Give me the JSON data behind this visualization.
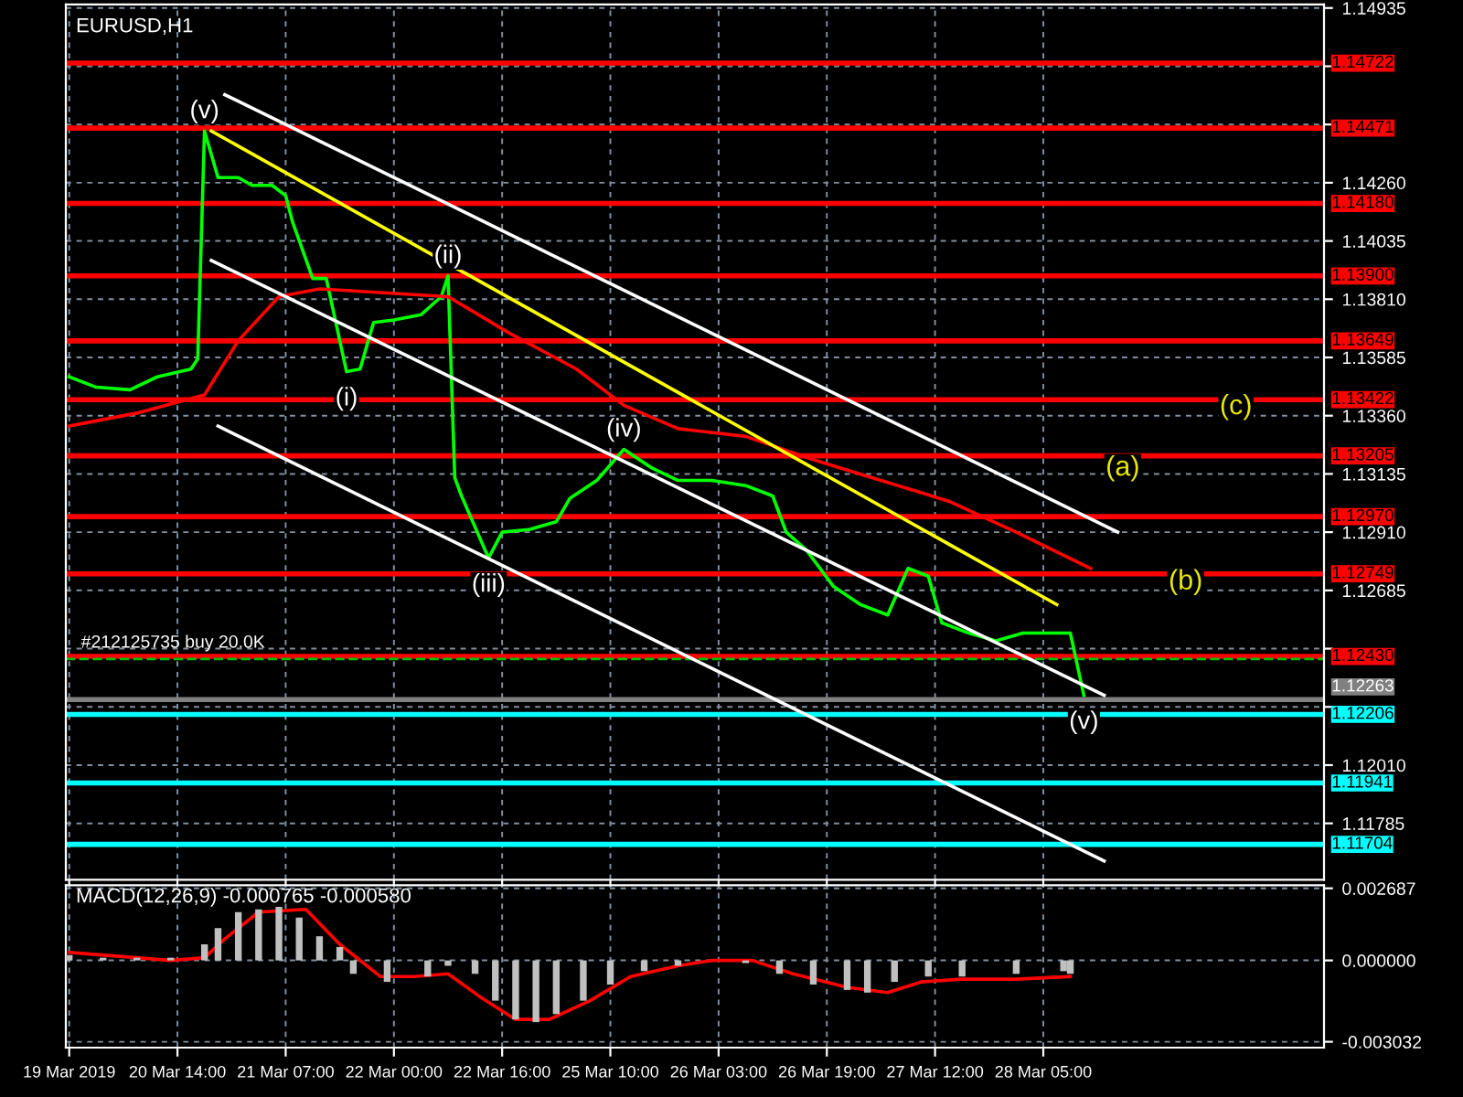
{
  "chart_data": [
    {
      "type": "line",
      "title": "EURUSD,H1",
      "ylim": [
        1.11567,
        1.14949
      ],
      "categories": [
        null,
        null,
        null,
        null,
        null,
        null,
        null,
        null,
        null,
        null,
        null,
        null,
        null,
        null,
        null,
        null,
        null,
        null,
        null,
        null,
        null,
        null,
        null,
        null,
        null,
        null,
        null,
        null,
        null,
        null,
        null,
        null,
        null,
        null,
        null,
        null,
        null,
        null,
        null,
        null,
        null,
        null,
        null,
        null,
        null,
        null,
        null,
        null,
        null,
        null,
        null,
        null,
        null,
        null,
        null,
        null,
        null,
        null,
        null,
        null,
        null,
        null,
        null,
        null,
        null,
        null,
        null,
        null,
        null,
        null,
        null,
        null,
        null,
        null,
        null,
        null,
        null,
        null,
        null,
        null,
        null,
        null,
        null,
        null,
        null,
        null,
        null,
        null,
        null,
        null,
        null,
        null,
        null,
        null,
        null,
        null,
        null,
        null,
        null,
        null,
        null,
        null,
        null,
        null,
        null,
        null,
        null,
        null,
        null,
        null,
        null,
        null,
        null,
        null,
        null,
        null,
        null,
        null,
        null,
        null,
        null,
        null,
        null,
        null,
        null,
        null,
        null,
        null,
        null,
        null,
        null,
        null,
        null,
        null,
        null,
        null,
        null,
        null,
        null,
        null,
        null,
        null,
        null,
        null,
        null,
        null,
        null,
        null,
        null,
        null,
        null,
        null,
        null,
        null,
        null,
        null,
        null,
        null,
        null,
        null,
        null,
        null,
        null,
        null,
        null,
        null,
        null,
        null,
        null,
        null,
        null,
        null,
        null,
        null,
        null,
        null,
        null,
        null,
        null,
        null,
        null,
        null,
        null,
        null,
        null,
        null
      ],
      "yticks": [
        1.14935,
        {
          "value": 1.1471,
          "label": null
        },
        {
          "value": 1.14485,
          "label": null
        },
        {
          "value": 1.1426,
          "label": "1.14260"
        },
        1.14035,
        {
          "value": 1.1381,
          "label": "1.13810"
        },
        1.13585,
        {
          "value": 1.1336,
          "label": "1.13360"
        },
        1.13135,
        {
          "value": 1.1291,
          "label": "1.12910"
        },
        1.12685,
        {
          "value": 1.1246,
          "label": null
        },
        {
          "value": 1.12235,
          "label": null
        },
        {
          "value": 1.1201,
          "label": "1.12010"
        },
        1.11785
      ],
      "tick_labels": "y",
      "grid": true,
      "legend": false,
      "marker": "none",
      "series": [
        {
          "color": "#00ff00",
          "line_style": "solid",
          "values": [
            1.1351,
            null,
            null,
            null,
            1.1347,
            null,
            null,
            null,
            null,
            1.1346,
            null,
            null,
            null,
            1.1351,
            null,
            null,
            null,
            null,
            1.1354,
            1.1358,
            1.1446,
            null,
            1.1428,
            null,
            null,
            1.1428,
            null,
            1.1425,
            null,
            null,
            1.1425,
            null,
            1.1421,
            1.1411,
            null,
            null,
            1.1389,
            null,
            1.1389,
            null,
            1.1365,
            1.1353,
            null,
            1.1354,
            null,
            1.1372,
            null,
            null,
            1.1373,
            null,
            null,
            null,
            1.1375,
            null,
            null,
            1.1382,
            1.139,
            1.1312,
            1.1305,
            null,
            null,
            null,
            1.1281,
            null,
            1.1291,
            null,
            null,
            null,
            1.1292,
            null,
            null,
            null,
            1.1295,
            null,
            1.1304,
            null,
            null,
            null,
            1.1311,
            null,
            null,
            null,
            1.1323,
            null,
            null,
            null,
            1.1316,
            null,
            null,
            null,
            1.1311,
            null,
            null,
            null,
            null,
            1.1311,
            null,
            null,
            null,
            null,
            1.1309,
            null,
            null,
            null,
            1.1305,
            null,
            1.1291,
            null,
            null,
            1.1284,
            null,
            null,
            null,
            1.127,
            null,
            null,
            null,
            1.1263,
            null,
            null,
            null,
            1.1259,
            null,
            null,
            1.1277,
            null,
            null,
            1.1274,
            null,
            1.1256,
            null,
            null,
            null,
            1.1252,
            null,
            null,
            null,
            1.1249,
            null,
            null,
            null,
            1.1252,
            null,
            null,
            1.1252,
            null,
            null,
            null,
            1.1252,
            null,
            1.1228,
            null,
            null,
            null,
            null,
            null,
            null,
            null,
            null,
            null,
            null,
            null,
            null,
            null,
            null,
            null,
            null,
            null,
            null,
            null,
            null,
            null,
            null,
            null,
            null,
            null,
            null,
            null,
            null,
            null,
            null,
            null,
            null,
            null,
            null,
            null
          ]
        },
        {
          "color": "#ff0000",
          "line_style": "solid",
          "values": [
            1.1332,
            null,
            null,
            null,
            null,
            null,
            null,
            null,
            null,
            null,
            1.1337,
            null,
            null,
            null,
            null,
            null,
            null,
            null,
            null,
            null,
            1.1344,
            null,
            null,
            null,
            null,
            1.1365,
            null,
            null,
            null,
            null,
            null,
            1.1382,
            null,
            null,
            null,
            null,
            null,
            1.1385,
            null,
            null,
            null,
            null,
            null,
            null,
            null,
            null,
            null,
            null,
            null,
            null,
            null,
            null,
            null,
            null,
            null,
            null,
            1.1382,
            null,
            null,
            null,
            null,
            null,
            null,
            null,
            null,
            1.1368,
            null,
            null,
            null,
            null,
            null,
            null,
            null,
            null,
            null,
            1.1354,
            null,
            null,
            null,
            null,
            null,
            null,
            1.134,
            null,
            null,
            null,
            null,
            null,
            null,
            null,
            1.1331,
            null,
            null,
            null,
            null,
            null,
            null,
            null,
            null,
            null,
            1.1328,
            null,
            null,
            null,
            null,
            null,
            null,
            null,
            null,
            null,
            1.1319,
            null,
            null,
            null,
            null,
            null,
            null,
            null,
            null,
            null,
            1.1311,
            null,
            null,
            null,
            null,
            null,
            null,
            null,
            null,
            null,
            1.1303,
            null,
            null,
            null,
            null,
            null,
            null,
            null,
            null,
            null,
            1.1291,
            null,
            null,
            null,
            null,
            null,
            null,
            null,
            null,
            null,
            null,
            1.1277,
            null,
            null,
            null,
            null,
            null,
            null,
            null,
            null,
            null,
            null,
            null,
            null,
            null,
            null,
            null,
            null,
            null,
            null,
            null,
            null,
            null,
            null,
            null,
            null,
            null,
            null,
            null,
            null,
            null,
            null,
            null,
            null,
            null,
            null
          ]
        },
        {
          "color": "#ffffff",
          "line_style": "solid",
          "values": [
            null,
            null,
            null,
            null,
            null,
            null,
            null,
            null,
            null,
            null,
            null,
            null,
            null,
            null,
            null,
            null,
            null,
            null,
            null,
            null,
            null,
            null,
            null,
            1.146,
            null,
            null,
            null,
            null,
            null,
            null,
            null,
            null,
            null,
            null,
            null,
            null,
            null,
            null,
            null,
            null,
            null,
            null,
            null,
            null,
            null,
            null,
            null,
            null,
            null,
            null,
            null,
            null,
            null,
            null,
            null,
            null,
            null,
            null,
            null,
            null,
            null,
            null,
            null,
            null,
            null,
            null,
            null,
            null,
            null,
            null,
            null,
            null,
            null,
            null,
            null,
            null,
            null,
            null,
            null,
            null,
            null,
            null,
            null,
            null,
            null,
            null,
            null,
            null,
            null,
            null,
            null,
            null,
            null,
            null,
            null,
            null,
            null,
            null,
            null,
            null,
            null,
            null,
            null,
            null,
            null,
            null,
            null,
            null,
            null,
            null,
            null,
            null,
            null,
            null,
            null,
            null,
            null,
            null,
            null,
            null,
            null,
            null,
            null,
            null,
            null,
            null,
            null,
            null,
            null,
            null,
            null,
            null,
            null,
            null,
            null,
            null,
            null,
            null,
            null,
            null,
            null,
            null,
            null,
            null,
            null,
            null,
            null,
            null,
            null,
            null,
            null,
            null,
            null,
            null,
            null,
            1.1291,
            null,
            null,
            null,
            null,
            null,
            null,
            null,
            null,
            null,
            null,
            null,
            null,
            null,
            null,
            null,
            null,
            null,
            null,
            null,
            null,
            null,
            null,
            null,
            null,
            null,
            null,
            null,
            null,
            null,
            null
          ]
        },
        {
          "color": "#ffffff",
          "line_style": "solid",
          "values": [
            null,
            null,
            null,
            null,
            null,
            null,
            null,
            null,
            null,
            null,
            null,
            null,
            null,
            null,
            null,
            null,
            null,
            null,
            null,
            null,
            null,
            1.1396,
            null,
            null,
            null,
            null,
            null,
            null,
            null,
            null,
            null,
            null,
            null,
            null,
            null,
            null,
            null,
            null,
            null,
            null,
            null,
            null,
            null,
            null,
            null,
            null,
            null,
            null,
            null,
            null,
            null,
            null,
            null,
            null,
            null,
            null,
            null,
            null,
            null,
            null,
            null,
            null,
            null,
            null,
            null,
            null,
            null,
            null,
            null,
            null,
            null,
            null,
            null,
            null,
            null,
            null,
            null,
            null,
            null,
            null,
            null,
            null,
            null,
            null,
            null,
            null,
            null,
            null,
            null,
            null,
            null,
            null,
            null,
            null,
            null,
            null,
            null,
            null,
            null,
            null,
            null,
            null,
            null,
            null,
            null,
            null,
            null,
            null,
            null,
            null,
            null,
            null,
            null,
            null,
            null,
            null,
            null,
            null,
            null,
            null,
            null,
            null,
            null,
            null,
            null,
            null,
            null,
            null,
            null,
            null,
            null,
            null,
            null,
            null,
            null,
            null,
            null,
            null,
            null,
            null,
            null,
            null,
            null,
            null,
            null,
            null,
            null,
            null,
            null,
            null,
            null,
            null,
            null,
            1.1228,
            null,
            null,
            null,
            null,
            null,
            null,
            null,
            null,
            null,
            null,
            null,
            null,
            null,
            null,
            null,
            null,
            null,
            null,
            null,
            null,
            null,
            null,
            null,
            null,
            null,
            null,
            null,
            null,
            null,
            null,
            null,
            null
          ]
        },
        {
          "color": "#ffffff",
          "line_style": "solid",
          "values": [
            null,
            null,
            null,
            null,
            null,
            null,
            null,
            null,
            null,
            null,
            null,
            null,
            null,
            null,
            null,
            null,
            null,
            null,
            null,
            null,
            null,
            null,
            1.1332,
            null,
            null,
            null,
            null,
            null,
            null,
            null,
            null,
            null,
            null,
            null,
            null,
            null,
            null,
            null,
            null,
            null,
            null,
            null,
            null,
            null,
            null,
            null,
            null,
            null,
            null,
            null,
            null,
            null,
            null,
            null,
            null,
            null,
            null,
            null,
            null,
            null,
            null,
            null,
            null,
            null,
            null,
            null,
            null,
            null,
            null,
            null,
            null,
            null,
            null,
            null,
            null,
            null,
            null,
            null,
            null,
            null,
            null,
            null,
            null,
            null,
            null,
            null,
            null,
            null,
            null,
            null,
            null,
            null,
            null,
            null,
            null,
            null,
            null,
            null,
            null,
            null,
            null,
            null,
            null,
            null,
            null,
            null,
            null,
            null,
            null,
            null,
            null,
            null,
            null,
            null,
            null,
            null,
            null,
            null,
            null,
            null,
            null,
            null,
            null,
            null,
            null,
            null,
            null,
            null,
            null,
            null,
            null,
            null,
            null,
            null,
            null,
            null,
            null,
            null,
            null,
            null,
            null,
            null,
            null,
            null,
            null,
            null,
            null,
            null,
            null,
            null,
            null,
            null,
            null,
            1.1164,
            null,
            null,
            null,
            null,
            null,
            null,
            null,
            null,
            null,
            null,
            null,
            null,
            null,
            null,
            null,
            null,
            null,
            null,
            null,
            null,
            null,
            null,
            null,
            null,
            null,
            null,
            null,
            null,
            null,
            null,
            null,
            null
          ]
        },
        {
          "color": "#ffff00",
          "line_style": "solid",
          "values": [
            null,
            null,
            null,
            null,
            null,
            null,
            null,
            null,
            null,
            null,
            null,
            null,
            null,
            null,
            null,
            null,
            null,
            null,
            null,
            null,
            null,
            1.1446,
            null,
            null,
            null,
            null,
            null,
            null,
            null,
            null,
            null,
            null,
            null,
            null,
            null,
            null,
            null,
            null,
            null,
            null,
            null,
            null,
            null,
            null,
            null,
            null,
            null,
            null,
            null,
            null,
            null,
            null,
            null,
            null,
            null,
            null,
            null,
            null,
            null,
            null,
            null,
            null,
            null,
            null,
            null,
            null,
            null,
            null,
            null,
            null,
            null,
            null,
            null,
            null,
            null,
            null,
            null,
            null,
            null,
            null,
            null,
            null,
            null,
            null,
            null,
            null,
            null,
            null,
            null,
            null,
            null,
            null,
            null,
            null,
            null,
            null,
            null,
            null,
            null,
            null,
            null,
            null,
            null,
            null,
            null,
            null,
            null,
            null,
            null,
            null,
            null,
            null,
            null,
            null,
            null,
            null,
            null,
            null,
            null,
            null,
            null,
            null,
            null,
            null,
            null,
            null,
            null,
            null,
            null,
            null,
            null,
            null,
            null,
            null,
            null,
            null,
            null,
            null,
            null,
            null,
            null,
            null,
            null,
            null,
            null,
            null,
            1.1263,
            null,
            null,
            null,
            null,
            null,
            null,
            null,
            null,
            null,
            null,
            null,
            null,
            null,
            null,
            null,
            null,
            null,
            null,
            null,
            null,
            null,
            null,
            null,
            null,
            null,
            null,
            null,
            null,
            null,
            null,
            null,
            null,
            null,
            null,
            null,
            null,
            null,
            null,
            null
          ]
        }
      ],
      "ref_lines": [
        {
          "axis": "y",
          "value": 1.14722,
          "label": "1.14722",
          "color": "#ff0000",
          "line_style": "solid"
        },
        {
          "axis": "y",
          "value": 1.14471,
          "label": "1.14471",
          "color": "#ff0000",
          "line_style": "solid"
        },
        {
          "axis": "y",
          "value": 1.1418,
          "label": "1.14180",
          "color": "#ff0000",
          "line_style": "solid"
        },
        {
          "axis": "y",
          "value": 1.139,
          "label": "1.13900",
          "color": "#ff0000",
          "line_style": "solid"
        },
        {
          "axis": "y",
          "value": 1.13649,
          "label": "1.13649",
          "color": "#ff0000",
          "line_style": "solid"
        },
        {
          "axis": "y",
          "value": 1.13422,
          "label": "1.13422",
          "color": "#ff0000",
          "line_style": "solid"
        },
        {
          "axis": "y",
          "value": 1.13205,
          "label": "1.13205",
          "color": "#ff0000",
          "line_style": "solid"
        },
        {
          "axis": "y",
          "value": 1.1297,
          "label": "1.12970",
          "color": "#ff0000",
          "line_style": "solid"
        },
        {
          "axis": "y",
          "value": 1.12749,
          "label": "1.12749",
          "color": "#ff0000",
          "line_style": "solid"
        },
        {
          "axis": "y",
          "value": 1.1243,
          "label": "1.12430",
          "color": "#ff0000",
          "line_style": "solid"
        },
        {
          "axis": "y",
          "value": 1.1242,
          "label": "#212125735 buy 20.0K",
          "color": "#00c000",
          "line_style": "dashed"
        },
        {
          "axis": "y",
          "value": 1.12263,
          "label": "1.12263",
          "color": "#808080",
          "line_style": "solid"
        },
        {
          "axis": "y",
          "value": 1.12206,
          "label": "1.12206",
          "color": "#00ffff",
          "line_style": "solid"
        },
        {
          "axis": "y",
          "value": 1.11941,
          "label": "1.11941",
          "color": "#00ffff",
          "line_style": "solid"
        },
        {
          "axis": "y",
          "value": 1.11704,
          "label": "1.11704",
          "color": "#00ffff",
          "line_style": "solid"
        }
      ],
      "annotations": [
        {
          "text": "(v)",
          "y": 1.1446
        },
        {
          "text": "(i)",
          "y": 1.1353
        },
        {
          "text": "(ii)",
          "y": 1.139
        },
        {
          "text": "(iii)",
          "y": 1.1281
        },
        {
          "text": "(iv)",
          "y": 1.1323
        },
        {
          "text": "(v)",
          "y": 1.1228
        },
        "(a)",
        "(b)",
        "(c)"
      ]
    },
    {
      "type": "bar",
      "title": "MACD(12,26,9) -0.000765 -0.000580",
      "ylim": [
        -0.00325,
        0.0028
      ],
      "categories": [
        "19 Mar 2019",
        null,
        null,
        null,
        null,
        null,
        null,
        null,
        null,
        null,
        null,
        null,
        null,
        null,
        null,
        null,
        "20 Mar 14:00",
        null,
        null,
        null,
        null,
        null,
        null,
        null,
        null,
        null,
        null,
        null,
        null,
        null,
        null,
        null,
        "21 Mar 07:00",
        null,
        null,
        null,
        null,
        null,
        null,
        null,
        null,
        null,
        null,
        null,
        null,
        null,
        null,
        null,
        "22 Mar 00:00",
        null,
        null,
        null,
        null,
        null,
        null,
        null,
        null,
        null,
        null,
        null,
        null,
        null,
        null,
        null,
        "22 Mar 16:00",
        null,
        null,
        null,
        null,
        null,
        null,
        null,
        null,
        null,
        null,
        null,
        null,
        null,
        null,
        null,
        "25 Mar 10:00",
        null,
        null,
        null,
        null,
        null,
        null,
        null,
        null,
        null,
        null,
        null,
        null,
        null,
        null,
        null,
        "26 Mar 03:00",
        null,
        null,
        null,
        null,
        null,
        null,
        null,
        null,
        null,
        null,
        null,
        null,
        null,
        null,
        null,
        "26 Mar 19:00",
        null,
        null,
        null,
        null,
        null,
        null,
        null,
        null,
        null,
        null,
        null,
        null,
        null,
        null,
        null,
        "27 Mar 12:00",
        null,
        null,
        null,
        null,
        null,
        null,
        null,
        null,
        null,
        null,
        null,
        null,
        null,
        null,
        null,
        "28 Mar 05:00",
        null,
        null,
        null,
        null,
        null,
        null,
        null,
        null,
        null,
        null,
        null,
        null,
        null,
        null,
        null,
        null,
        null,
        null,
        null,
        null,
        null,
        null,
        null,
        null,
        null,
        null,
        null,
        null,
        null,
        null,
        null,
        null,
        null,
        null,
        null,
        null,
        null,
        null,
        null,
        null,
        null
      ],
      "yticks": [
        {
          "value": 0.002687,
          "label": "0.002687"
        },
        {
          "value": 0.0,
          "label": "0.000000"
        },
        {
          "value": -0.003032,
          "label": "-0.003032"
        }
      ],
      "grid": true,
      "legend": false,
      "series": [
        {
          "type": "bar",
          "color": "#c0c0c0",
          "values": [
            0.0002,
            null,
            null,
            null,
            null,
            0.0001,
            null,
            null,
            null,
            null,
            0.0001,
            null,
            null,
            null,
            null,
            0.0001,
            null,
            null,
            null,
            null,
            0.0006,
            null,
            0.0012,
            null,
            null,
            0.0018,
            null,
            null,
            0.0019,
            null,
            null,
            0.002,
            null,
            null,
            0.0016,
            null,
            null,
            0.0009,
            null,
            null,
            0.0005,
            null,
            -0.0005,
            null,
            null,
            null,
            null,
            -0.0008,
            null,
            null,
            null,
            null,
            null,
            -0.0006,
            null,
            null,
            -0.0002,
            null,
            null,
            null,
            -0.0005,
            null,
            null,
            -0.0015,
            null,
            null,
            -0.0022,
            null,
            null,
            -0.0023,
            null,
            null,
            -0.002,
            null,
            null,
            null,
            -0.0015,
            null,
            null,
            null,
            -0.0009,
            null,
            null,
            null,
            null,
            -0.0004,
            null,
            null,
            null,
            null,
            -0.0002,
            null,
            null,
            null,
            null,
            null,
            null,
            null,
            null,
            null,
            -0.0001,
            null,
            null,
            null,
            null,
            -0.0005,
            null,
            null,
            null,
            null,
            -0.0009,
            null,
            null,
            null,
            null,
            -0.0011,
            null,
            null,
            -0.0012,
            null,
            null,
            null,
            -0.0008,
            null,
            null,
            null,
            null,
            -0.0006,
            null,
            null,
            null,
            null,
            -0.0006,
            null,
            null,
            null,
            null,
            null,
            null,
            null,
            -0.0005,
            null,
            null,
            null,
            null,
            null,
            null,
            -0.0004,
            -0.0005,
            null,
            null,
            null,
            null,
            null,
            null,
            null,
            null,
            null,
            null,
            null,
            null,
            null,
            null,
            null,
            null,
            null,
            null,
            null,
            null,
            null,
            null,
            null,
            null,
            null,
            null,
            null,
            null,
            null,
            null,
            null,
            null,
            null,
            null,
            null,
            null,
            null
          ]
        },
        {
          "type": "line",
          "color": "#ff0000",
          "values": [
            0.0003,
            null,
            null,
            null,
            null,
            null,
            null,
            null,
            null,
            null,
            0.0001,
            null,
            null,
            null,
            null,
            0.0,
            null,
            null,
            null,
            null,
            0.0001,
            null,
            null,
            0.0008,
            null,
            null,
            null,
            null,
            0.0018,
            null,
            null,
            null,
            null,
            null,
            null,
            0.0019,
            null,
            null,
            null,
            null,
            0.0006,
            null,
            null,
            null,
            null,
            null,
            -0.0006,
            null,
            null,
            null,
            null,
            -0.0006,
            null,
            null,
            null,
            null,
            -0.0005,
            null,
            null,
            null,
            null,
            -0.0014,
            null,
            null,
            null,
            null,
            -0.0022,
            null,
            null,
            null,
            null,
            -0.0022,
            null,
            null,
            null,
            null,
            null,
            -0.0015,
            null,
            null,
            null,
            null,
            null,
            -0.0006,
            null,
            null,
            null,
            null,
            null,
            null,
            -0.0002,
            null,
            null,
            null,
            null,
            0.0,
            null,
            null,
            null,
            null,
            null,
            0.0,
            null,
            null,
            null,
            null,
            null,
            -0.0005,
            null,
            null,
            null,
            null,
            null,
            null,
            null,
            -0.001,
            null,
            null,
            null,
            null,
            null,
            -0.0012,
            null,
            null,
            null,
            null,
            -0.0008,
            null,
            null,
            null,
            null,
            null,
            -0.0007,
            null,
            null,
            null,
            null,
            null,
            null,
            null,
            -0.0007,
            null,
            null,
            null,
            null,
            null,
            null,
            null,
            -0.0006,
            null,
            null,
            null,
            null,
            null,
            null,
            null,
            null,
            null,
            null,
            null,
            null,
            null,
            null,
            null,
            null,
            null,
            null,
            null,
            null,
            null,
            null,
            null,
            null,
            null,
            null,
            null,
            null,
            null,
            null,
            null,
            null,
            null,
            null,
            null,
            null,
            null
          ]
        }
      ]
    }
  ]
}
